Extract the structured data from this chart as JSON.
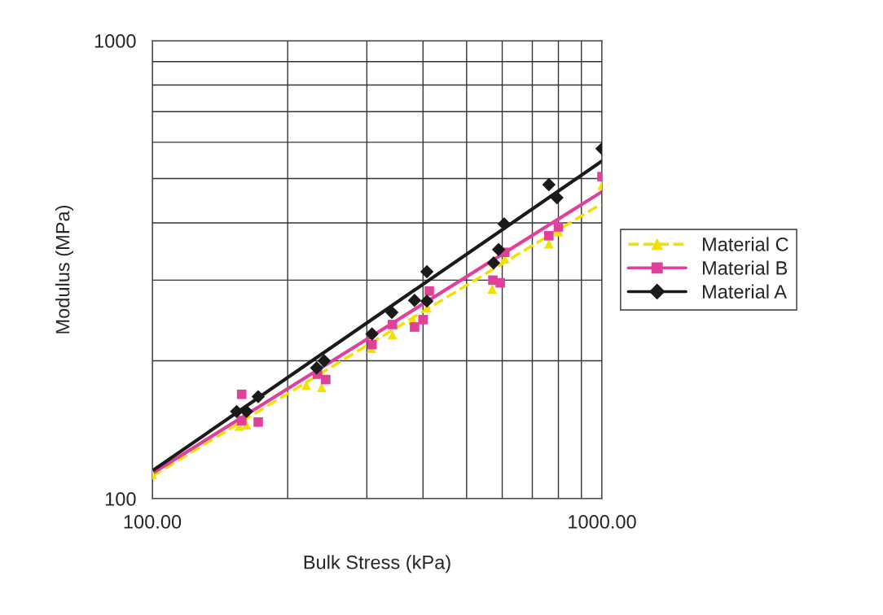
{
  "chart_data": {
    "type": "scatter",
    "xlabel": "Bulk Stress (kPa)",
    "ylabel": "Modulus (MPa)",
    "log": "xy",
    "grid": true,
    "legend": "right",
    "xlim": [
      100,
      1000
    ],
    "ylim": [
      100,
      1000
    ],
    "xticks": [
      {
        "value": 100,
        "label": "100.00"
      },
      {
        "value": 200,
        "label": null
      },
      {
        "value": 300,
        "label": null
      },
      {
        "value": 400,
        "label": null
      },
      {
        "value": 500,
        "label": null
      },
      {
        "value": 600,
        "label": null
      },
      {
        "value": 700,
        "label": null
      },
      {
        "value": 800,
        "label": null
      },
      {
        "value": 900,
        "label": null
      },
      {
        "value": 1000,
        "label": "1000.00"
      }
    ],
    "yticks": [
      100,
      {
        "value": 200,
        "label": null
      },
      {
        "value": 300,
        "label": null
      },
      {
        "value": 400,
        "label": null
      },
      {
        "value": 500,
        "label": null
      },
      {
        "value": 600,
        "label": null
      },
      {
        "value": 700,
        "label": null
      },
      {
        "value": 800,
        "label": null
      },
      {
        "value": 900,
        "label": null
      },
      1000
    ],
    "series": [
      {
        "name": "Material C",
        "marker": "triangle",
        "color": "#f2e000",
        "x": [
          100,
          156,
          162,
          220,
          238,
          307,
          342,
          380,
          408,
          570,
          608,
          762,
          800,
          1000
        ],
        "values": [
          113,
          144,
          145,
          177,
          175,
          213,
          228,
          246,
          261,
          287,
          334,
          360,
          383,
          483
        ]
      },
      {
        "name": "Material B",
        "marker": "square",
        "color": "#e0409a",
        "x": [
          158,
          158,
          172,
          233,
          243,
          308,
          342,
          383,
          400,
          413,
          572,
          594,
          608,
          762,
          800,
          1000
        ],
        "values": [
          169,
          148,
          147,
          187,
          182,
          217,
          240,
          237,
          246,
          284,
          300,
          296,
          345,
          375,
          392,
          505
        ]
      },
      {
        "name": "Material A",
        "marker": "diamond",
        "color": "#1a1a1a",
        "x": [
          154,
          162,
          172,
          232,
          241,
          308,
          341,
          383,
          408,
          408,
          574,
          589,
          606,
          762,
          794,
          1000
        ],
        "values": [
          155,
          155,
          167,
          193,
          200,
          229,
          255,
          271,
          313,
          270,
          327,
          350,
          398,
          485,
          454,
          581
        ]
      },
      {
        "type": "line",
        "line_style": "dashed",
        "color": "#f2e000",
        "x": [
          100,
          300,
          1000
        ],
        "values": [
          112,
          216,
          441
        ]
      },
      {
        "type": "line",
        "line_style": "solid",
        "color": "#e0409a",
        "x": [
          100,
          300,
          1000
        ],
        "values": [
          113.5,
          223,
          468
        ]
      },
      {
        "type": "line",
        "line_style": "solid",
        "color": "#1a1a1a",
        "x": [
          100,
          300,
          1000
        ],
        "values": [
          115,
          242,
          546
        ]
      }
    ]
  }
}
